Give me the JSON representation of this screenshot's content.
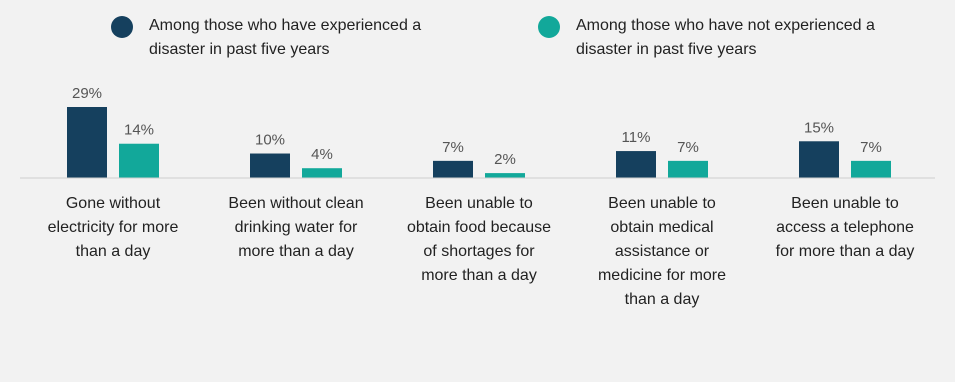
{
  "chart_data": {
    "type": "bar",
    "categories": [
      "Gone without electricity for more than a day",
      "Been without clean drinking water for more than a day",
      "Been unable to obtain food because of shortages for more than a day",
      "Been unable to obtain medical assistance or medicine for more than a day",
      "Been unable to access a telephone for more than a day"
    ],
    "series": [
      {
        "name": "Among those who have experienced a disaster in past five years",
        "values": [
          29,
          10,
          7,
          11,
          15
        ],
        "labels": [
          "29%",
          "10%",
          "7%",
          "11%",
          "15%"
        ],
        "color": "#15405e"
      },
      {
        "name": "Among those who have not experienced a disaster in past five years",
        "values": [
          14,
          4,
          2,
          7,
          7
        ],
        "labels": [
          "14%",
          "4%",
          "2%",
          "7%",
          "7%"
        ],
        "color": "#12a89a"
      }
    ],
    "ylim": [
      0,
      30
    ],
    "legend": "top",
    "grid": false
  }
}
